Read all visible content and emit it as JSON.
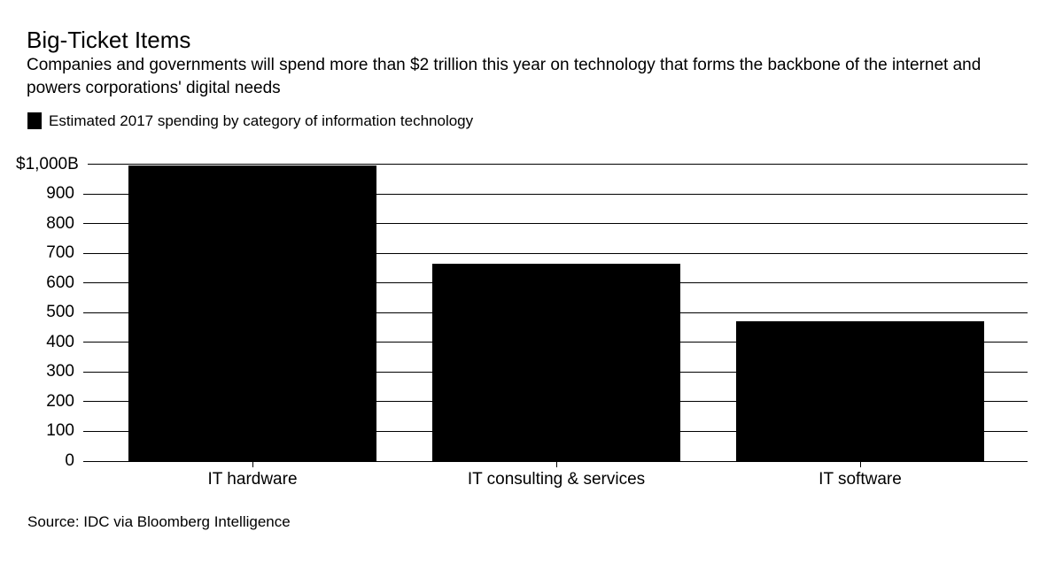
{
  "header": {
    "title": "Big-Ticket Items",
    "subtitle": "Companies and governments will spend more than $2 trillion this year on technology that forms the backbone of the internet and powers corporations' digital needs"
  },
  "legend": {
    "label": "Estimated 2017 spending by category of information technology",
    "swatch_color": "#000000"
  },
  "chart_data": {
    "type": "bar",
    "title": "Big-Ticket Items",
    "subtitle": "Companies and governments will spend more than $2 trillion this year on technology that forms the backbone of the internet and powers corporations' digital needs",
    "series_label": "Estimated 2017 spending by category of information technology",
    "categories": [
      "IT hardware",
      "IT consulting & services",
      "IT software"
    ],
    "values": [
      995,
      665,
      470
    ],
    "unit": "billions of US dollars",
    "xlabel": "",
    "ylabel": "",
    "ylim": [
      0,
      1000
    ],
    "yticks": [
      {
        "label": "$1,000B",
        "value": 1000
      },
      {
        "label": "900",
        "value": 900
      },
      {
        "label": "800",
        "value": 800
      },
      {
        "label": "700",
        "value": 700
      },
      {
        "label": "600",
        "value": 600
      },
      {
        "label": "500",
        "value": 500
      },
      {
        "label": "400",
        "value": 400
      },
      {
        "label": "300",
        "value": 300
      },
      {
        "label": "200",
        "value": 200
      },
      {
        "label": "100",
        "value": 100
      },
      {
        "label": "0",
        "value": 0
      }
    ],
    "grid": "horizontal",
    "bar_color": "#000000",
    "legend_position": "top-left"
  },
  "footer": {
    "source": "Source: IDC via Bloomberg Intelligence"
  },
  "colors": {
    "background": "#ffffff",
    "text": "#000000",
    "accent": "#000000"
  }
}
